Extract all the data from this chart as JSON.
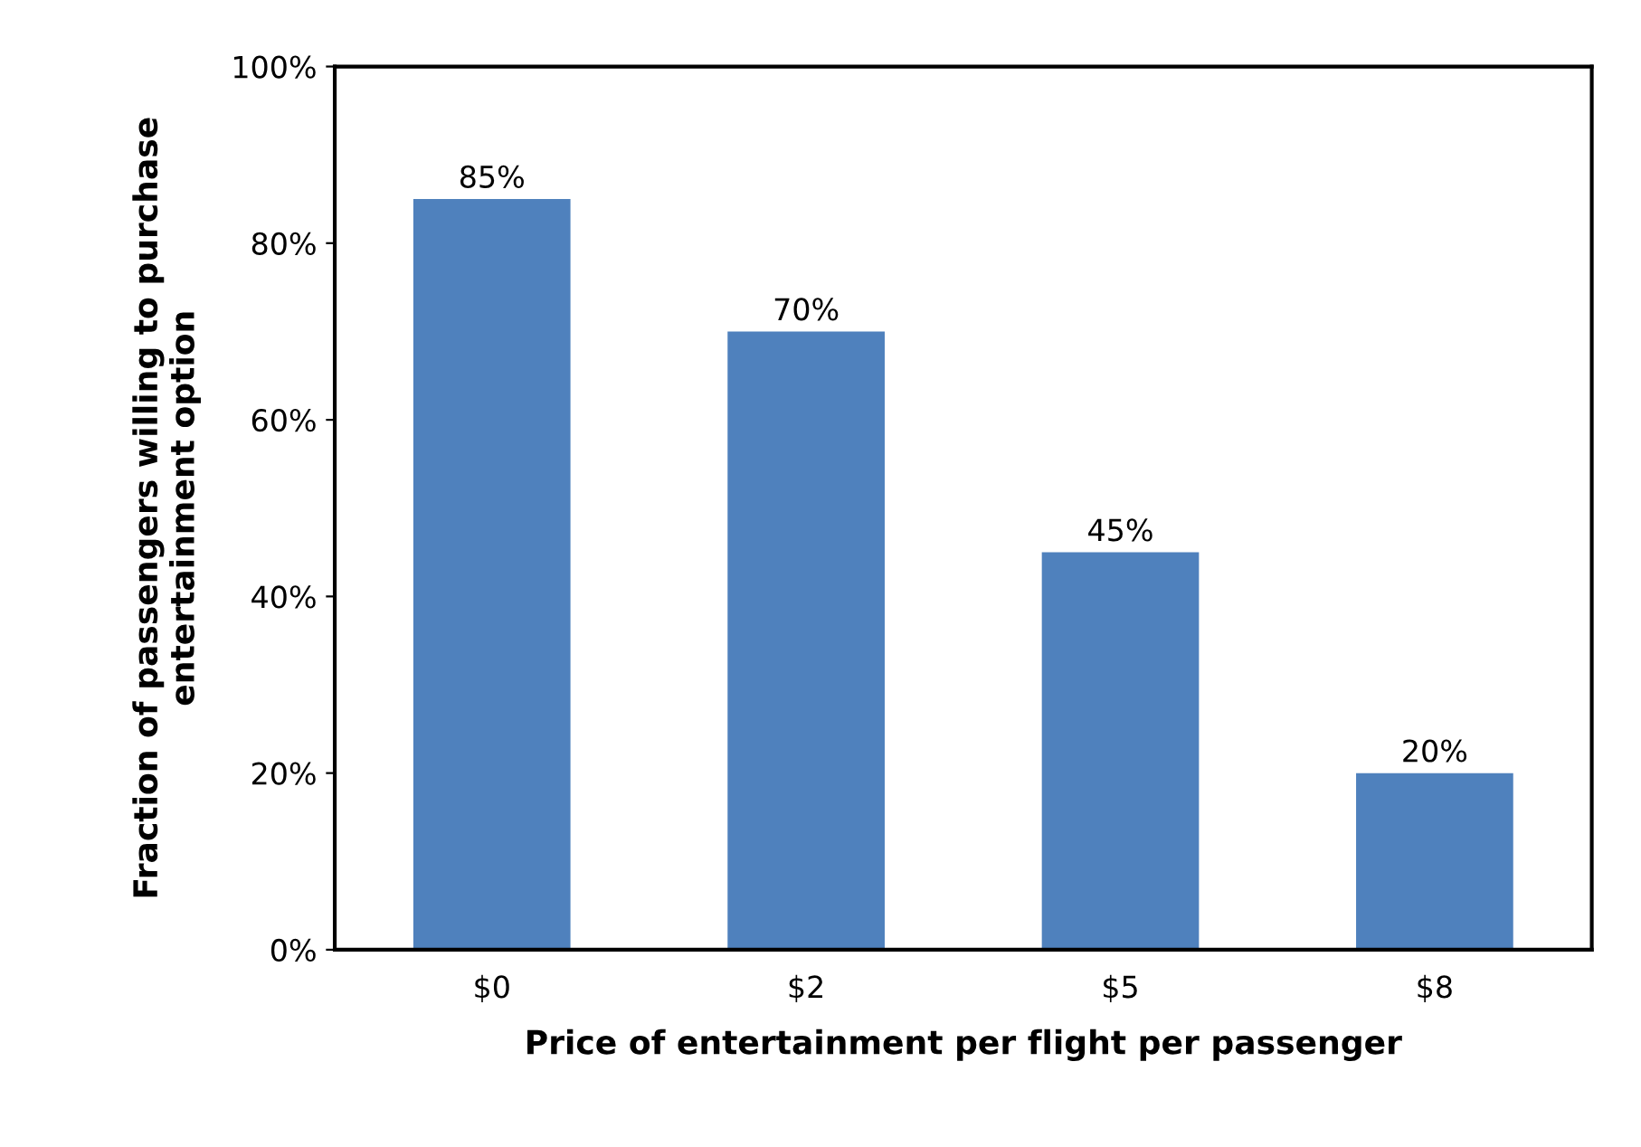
{
  "chart_data": {
    "type": "bar",
    "xlabel": "Price of entertainment per flight per passenger",
    "ylabel": "Fraction of passengers willing to purchase\nentertainment option",
    "categories": [
      "$0",
      "$2",
      "$5",
      "$8"
    ],
    "values": [
      85,
      70,
      45,
      20
    ],
    "color": "#4f81bd",
    "value_labels": [
      "85%",
      "70%",
      "45%",
      "20%"
    ],
    "ylim": [
      0,
      100
    ],
    "yticks": [
      {
        "value": 0,
        "label": "0%"
      },
      {
        "value": 20,
        "label": "20%"
      },
      {
        "value": 40,
        "label": "40%"
      },
      {
        "value": 60,
        "label": "60%"
      },
      {
        "value": 80,
        "label": "80%"
      },
      {
        "value": 100,
        "label": "100%"
      }
    ],
    "grid": false
  }
}
